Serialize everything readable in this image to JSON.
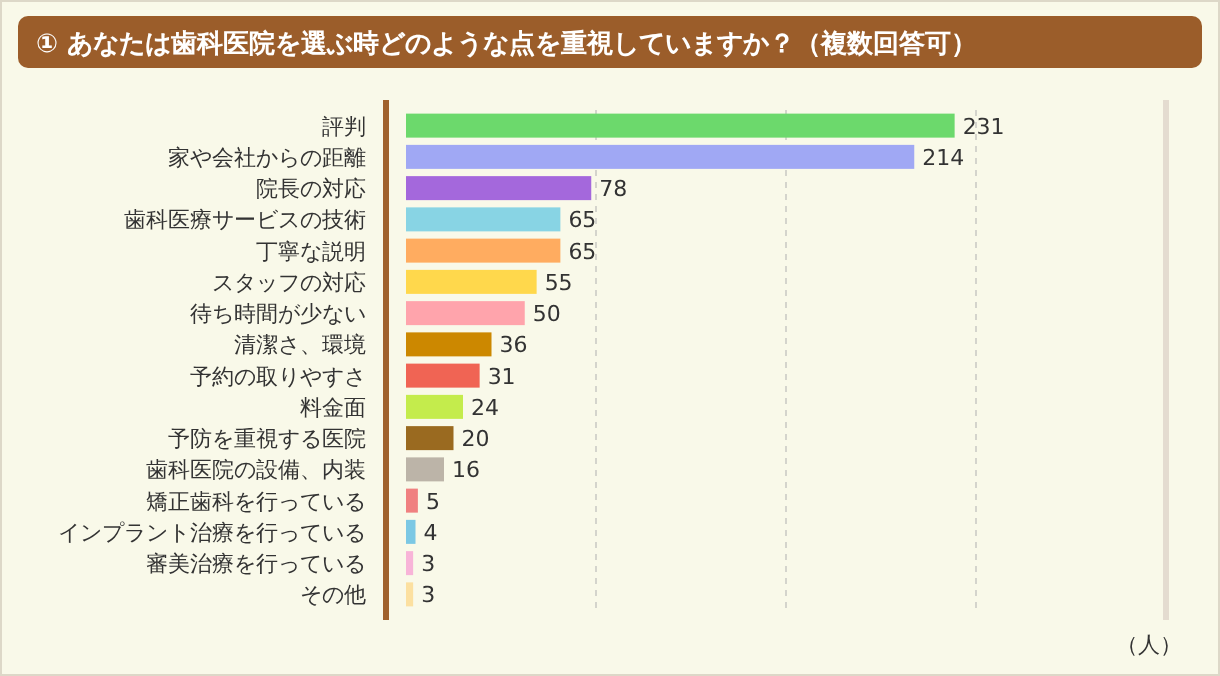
{
  "chart_data": {
    "type": "bar",
    "orientation": "horizontal",
    "title": "① あなたは歯科医院を選ぶ時どのような点を重視していますか？（複数回答可）",
    "xlabel": "（人）",
    "categories": [
      "評判",
      "家や会社からの距離",
      "院長の対応",
      "歯科医療サービスの技術",
      "丁寧な説明",
      "スタッフの対応",
      "待ち時間が少ない",
      "清潔さ、環境",
      "予約の取りやすさ",
      "料金面",
      "予防を重視する医院",
      "歯科医院の設備、内装",
      "矯正歯科を行っている",
      "インプラント治療を行っている",
      "審美治療を行っている",
      "その他"
    ],
    "values": [
      231,
      214,
      78,
      65,
      65,
      55,
      50,
      36,
      31,
      24,
      20,
      16,
      5,
      4,
      3,
      3
    ],
    "colors": [
      "#6cd96c",
      "#a0a8f4",
      "#a468dc",
      "#88d4e4",
      "#ffac60",
      "#ffd84c",
      "#ffa4ac",
      "#cc8800",
      "#f06454",
      "#c4ec4c",
      "#9a6a20",
      "#bcb4a8",
      "#f08080",
      "#7cc8e4",
      "#f8b4d8",
      "#fce0a0"
    ],
    "xlim": [
      0,
      320
    ],
    "xticks": [
      {
        "value": 80,
        "label": null
      },
      {
        "value": 160,
        "label": null
      },
      {
        "value": 240,
        "label": null
      }
    ],
    "tick_labels": "y",
    "grid": "x",
    "data_labels": true
  }
}
